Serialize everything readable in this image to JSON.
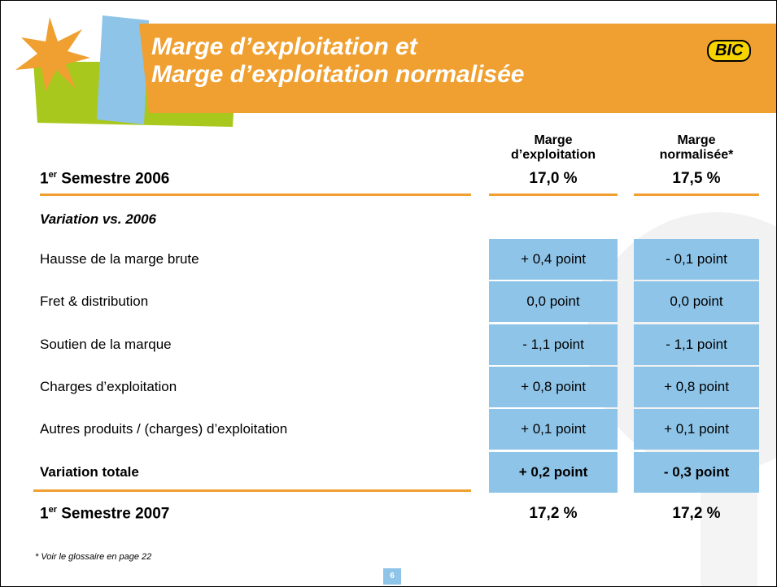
{
  "header": {
    "title_lines": [
      "Marge d’exploitation et",
      "Marge d’exploitation normalisée"
    ],
    "logo": "BIC"
  },
  "table": {
    "columns": [
      [
        "Marge",
        "d’exploitation"
      ],
      [
        "Marge",
        "normalisée*"
      ]
    ],
    "start": {
      "label": [
        "1",
        "er",
        " Semestre 2006"
      ],
      "values": [
        "17,0 %",
        "17,5 %"
      ]
    },
    "section": "Variation vs. 2006",
    "rows": [
      [
        "Hausse de la marge brute",
        "+ 0,4 point",
        "- 0,1 point"
      ],
      [
        "Fret & distribution",
        "0,0 point",
        "0,0 point"
      ],
      [
        "Soutien de la marque",
        "- 1,1 point",
        "- 1,1 point"
      ],
      [
        "Charges d’exploitation",
        "+ 0,8 point",
        "+ 0,8 point"
      ],
      [
        "Autres produits / (charges) d’exploitation",
        "+ 0,1 point",
        "+ 0,1 point"
      ]
    ],
    "total": [
      "Variation totale",
      "+ 0,2 point",
      "- 0,3 point"
    ],
    "end": {
      "label": [
        "1",
        "er",
        " Semestre 2007"
      ],
      "values": [
        "17,2 %",
        "17,2 %"
      ]
    }
  },
  "footer": {
    "note": "* Voir le glossaire en page 22",
    "page": "6"
  }
}
